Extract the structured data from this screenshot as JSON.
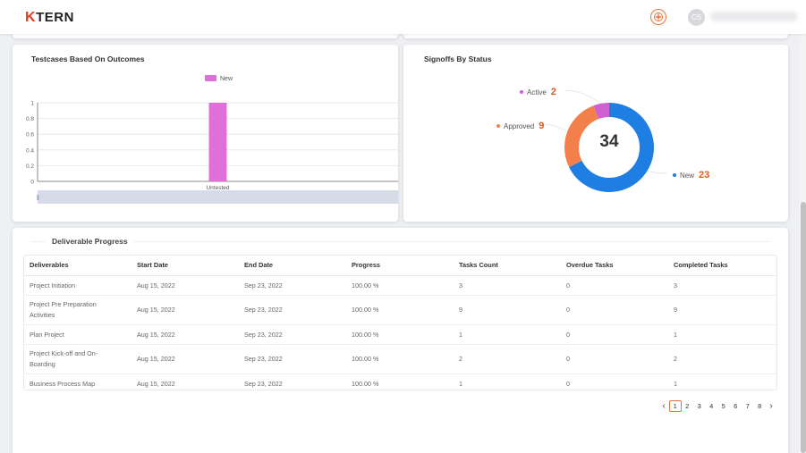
{
  "header": {
    "logo_prefix": "K",
    "logo_rest": "TERN",
    "avatar_initials": "CS"
  },
  "testcases_card": {
    "title": "Testcases Based On Outcomes"
  },
  "signoffs_card": {
    "title": "Signoffs By Status",
    "total": "34"
  },
  "deliverables_card": {
    "title": "Deliverable Progress",
    "columns": [
      "Deliverables",
      "Start Date",
      "End Date",
      "Progress",
      "Tasks Count",
      "Overdue Tasks",
      "Completed Tasks"
    ],
    "rows": [
      [
        "Project Initiation",
        "Aug 15, 2022",
        "Sep 23, 2022",
        "100.00 %",
        "3",
        "0",
        "3"
      ],
      [
        "Project Pre Preparation Activities",
        "Aug 15, 2022",
        "Sep 23, 2022",
        "100.00 %",
        "9",
        "0",
        "9"
      ],
      [
        "Plan Project",
        "Aug 15, 2022",
        "Sep 23, 2022",
        "100.00 %",
        "1",
        "0",
        "1"
      ],
      [
        "Project Kick-off and On-Boarding",
        "Aug 15, 2022",
        "Sep 23, 2022",
        "100.00 %",
        "2",
        "0",
        "2"
      ],
      [
        "Business Process Map",
        "Aug 15, 2022",
        "Sep 23, 2022",
        "100.00 %",
        "1",
        "0",
        "1"
      ]
    ],
    "pagination": {
      "prev": "‹",
      "next": "›",
      "pages": [
        "1",
        "2",
        "3",
        "4",
        "5",
        "6",
        "7",
        "8"
      ],
      "current": "1"
    }
  },
  "chart_data": [
    {
      "type": "bar",
      "categories": [
        "Untested"
      ],
      "series": [
        {
          "name": "New",
          "values": [
            1
          ]
        }
      ],
      "ylim": [
        0,
        1
      ],
      "yticks": [
        "0",
        "0.2",
        "0.4",
        "0.6",
        "0.8",
        "1"
      ],
      "legend": "top-center",
      "colors": {
        "New": "#e070d9"
      },
      "grid": true
    },
    {
      "type": "pie",
      "donut": true,
      "series": [
        {
          "name": "Active",
          "value": 2,
          "color": "#cf60d0"
        },
        {
          "name": "Approved",
          "value": 9,
          "color": "#f37f4a"
        },
        {
          "name": "New",
          "value": 23,
          "color": "#1f7ee2"
        }
      ],
      "total": "34"
    }
  ]
}
